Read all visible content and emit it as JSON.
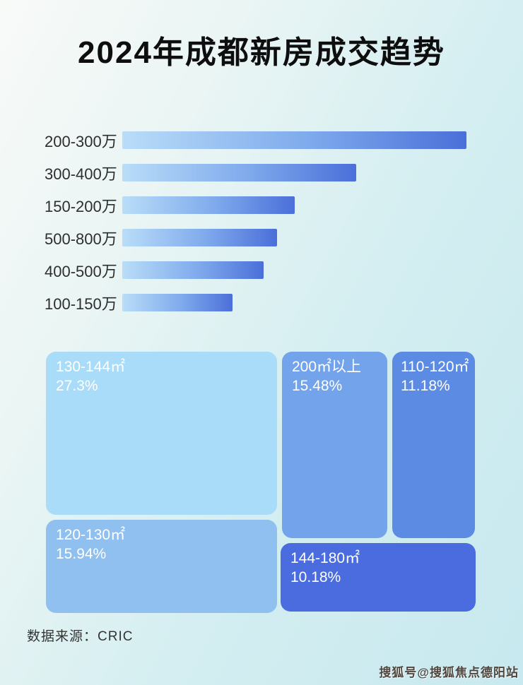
{
  "title": "2024年成都新房成交趋势",
  "bar_chart": {
    "rows": [
      {
        "label": "200-300万",
        "pct": 100
      },
      {
        "label": "300-400万",
        "pct": 68
      },
      {
        "label": "150-200万",
        "pct": 50
      },
      {
        "label": "500-800万",
        "pct": 45
      },
      {
        "label": "400-500万",
        "pct": 41
      },
      {
        "label": "100-150万",
        "pct": 32
      }
    ],
    "bar_gradient": [
      "#b9ddf8",
      "#4b6fd9"
    ]
  },
  "treemap": {
    "tiles": [
      {
        "label": "130-144㎡",
        "percent": "27.3%",
        "color": "#a9dcf8"
      },
      {
        "label": "120-130㎡",
        "percent": "15.94%",
        "color": "#8fc0f0"
      },
      {
        "label": "200㎡以上",
        "percent": "15.48%",
        "color": "#73a3ea"
      },
      {
        "label": "110-120㎡",
        "percent": "11.18%",
        "color": "#5c8be4"
      },
      {
        "label": "144-180㎡",
        "percent": "10.18%",
        "color": "#4a6cde"
      }
    ]
  },
  "footer": {
    "source": "数据来源：CRIC"
  },
  "watermark": "搜狐号@搜狐焦点德阳站",
  "chart_data": [
    {
      "type": "bar",
      "orientation": "horizontal",
      "title": "2024年成都新房成交趋势",
      "categories": [
        "200-300万",
        "300-400万",
        "150-200万",
        "500-800万",
        "400-500万",
        "100-150万"
      ],
      "values": [
        100,
        68,
        50,
        45,
        41,
        32
      ],
      "values_estimated": true,
      "value_note": "bar lengths relative to longest bar (%); no numeric labels shown in image",
      "xlabel": "",
      "ylabel": "",
      "legend": false,
      "grid": false
    },
    {
      "type": "treemap",
      "items": [
        {
          "label": "130-144㎡",
          "value": 27.3
        },
        {
          "label": "120-130㎡",
          "value": 15.94
        },
        {
          "label": "200㎡以上",
          "value": 15.48
        },
        {
          "label": "110-120㎡",
          "value": 11.18
        },
        {
          "label": "144-180㎡",
          "value": 10.18
        }
      ],
      "unit": "%"
    }
  ]
}
